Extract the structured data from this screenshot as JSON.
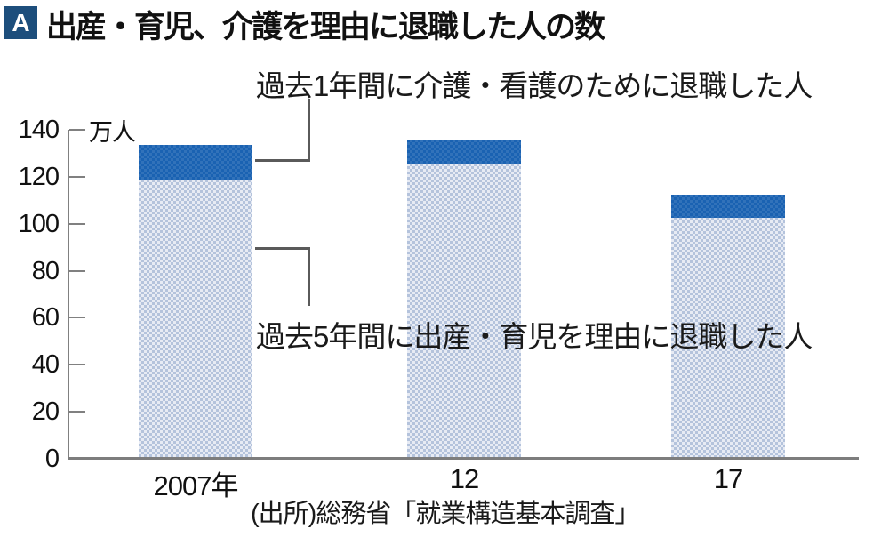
{
  "title": {
    "badge": "A",
    "text": "出産・育児、介護を理由に退職した人の数"
  },
  "annotations": {
    "care": "過去1年間に介護・看護のために退職した人",
    "childbirth": "過去5年間に出産・育児を理由に退職した人"
  },
  "source": "(出所)総務省「就業構造基本調査」",
  "chart_data": {
    "type": "bar",
    "stacked": true,
    "unit_label": "万人",
    "categories": [
      "2007年",
      "12",
      "17"
    ],
    "series": [
      {
        "name": "過去5年間に出産・育児を理由に退職した人",
        "color_key": "light_blue",
        "values": [
          119.0,
          125.7,
          102.5
        ]
      },
      {
        "name": "過去1年間に介護・看護のために退職した人",
        "color_key": "dark_blue",
        "values": [
          14.5,
          10.1,
          9.9
        ]
      }
    ],
    "totals": [
      133.5,
      135.8,
      112.4
    ],
    "ylim": [
      0,
      140
    ],
    "ytick_step": 20,
    "yticks": [
      0,
      20,
      40,
      60,
      80,
      100,
      120,
      140
    ],
    "legend_position": "none",
    "grid": false
  },
  "colors": {
    "dark_blue": "#1a62b2",
    "light_blue": "#c8d2e4",
    "badge_blue": "#1d4e7c",
    "axis_gray": "#808080",
    "connector_gray": "#5a5a5a",
    "text_black": "#1a1a1a"
  }
}
